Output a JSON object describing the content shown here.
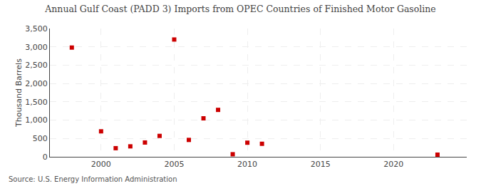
{
  "chart_data": {
    "type": "scatter",
    "title": "Annual Gulf Coast (PADD 3) Imports from OPEC Countries of Finished Motor Gasoline",
    "ylabel": "Thousand Barrels",
    "source": "Source: U.S. Energy Information Administration",
    "x": [
      1998,
      2000,
      2001,
      2002,
      2003,
      2004,
      2005,
      2006,
      2007,
      2008,
      2009,
      2010,
      2011,
      2023
    ],
    "values": [
      2980,
      695,
      235,
      285,
      390,
      570,
      3200,
      460,
      1050,
      1280,
      70,
      385,
      355,
      58
    ],
    "color": "#cc0000",
    "marker": "square",
    "xlim": [
      1996.5,
      2025
    ],
    "xticks": [
      2000,
      2005,
      2010,
      2015,
      2020
    ],
    "ylim": [
      0,
      3500
    ],
    "yticks": [
      0,
      500,
      {
        "value": 1000,
        "label": "1,000"
      },
      {
        "value": 1500,
        "label": "1,500"
      },
      {
        "value": 2000,
        "label": "2,000"
      },
      {
        "value": 2500,
        "label": "2,500"
      },
      {
        "value": 3000,
        "label": "3,000"
      },
      {
        "value": 3500,
        "label": "3,500"
      }
    ],
    "grid": true
  }
}
